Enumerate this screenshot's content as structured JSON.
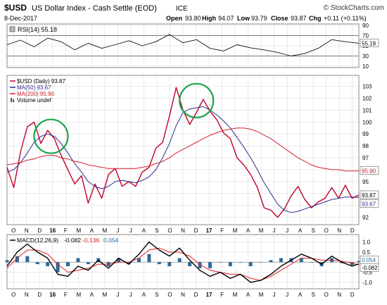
{
  "header": {
    "symbol": "$USD",
    "description": "US Dollar Index - Cash Settle (EOD)",
    "exchange": "ICE",
    "credit": "© StockCharts.com",
    "date": "8-Dec-2017",
    "ohlc": {
      "open_label": "Open",
      "open": "93.80",
      "high_label": "High",
      "high": "94.07",
      "low_label": "Low",
      "low": "93.79",
      "close_label": "Close",
      "close": "93.87",
      "chg_label": "Chg",
      "chg": "+0.11 (+0.11%)"
    }
  },
  "colors": {
    "price": "#c0002a",
    "ma50": "#2e2e8c",
    "ma200": "#d6202f",
    "rsi": "#111111",
    "macd": "#000000",
    "signal": "#e02020",
    "histogram": "#2c6a9c",
    "grid": "#d4d4d4",
    "highlight_circle": "#1aa34a"
  },
  "chart_data": [
    {
      "type": "line",
      "panel": "rsi",
      "legend": "RSI(14) 55.18",
      "ylim": [
        10,
        90
      ],
      "ytick_labels": [
        "90",
        "70",
        "50",
        "30",
        "10"
      ],
      "yticks": [
        90,
        70,
        50,
        30,
        10
      ],
      "reference_lines": [
        70,
        30
      ],
      "last_value_badge": "55.18",
      "x": [
        0,
        4,
        8,
        12,
        16,
        20,
        24,
        28,
        32,
        36,
        40,
        44,
        48,
        52,
        56,
        60,
        64,
        68,
        72,
        76,
        80,
        84,
        88,
        92,
        96,
        100,
        104
      ],
      "values": [
        52,
        61,
        48,
        65,
        58,
        42,
        55,
        45,
        52,
        60,
        50,
        58,
        72,
        56,
        62,
        45,
        40,
        52,
        46,
        42,
        37,
        30,
        35,
        45,
        62,
        58,
        55
      ]
    },
    {
      "type": "line",
      "panel": "price",
      "legend": [
        "$USD (Daily) 93.87",
        "MA(50) 93.67",
        "MA(200) 95.90",
        "Volume undef"
      ],
      "ylim": [
        91.5,
        103.8
      ],
      "yticks": [
        92,
        93,
        94,
        95,
        96,
        97,
        98,
        99,
        100,
        101,
        102,
        103
      ],
      "ytick_labels": [
        "92",
        "93",
        "94",
        "95",
        "96",
        "97",
        "98",
        "99",
        "100",
        "101",
        "102",
        "103"
      ],
      "last_value_badges": [
        "93.87",
        "93.67",
        "95.90"
      ],
      "x_tick_labels": [
        "O",
        "N",
        "D",
        "16",
        "F",
        "M",
        "A",
        "M",
        "J",
        "J",
        "A",
        "S",
        "O",
        "N",
        "D",
        "17",
        "F",
        "M",
        "A",
        "M",
        "J",
        "J",
        "A",
        "S",
        "O",
        "N",
        "D"
      ],
      "x": [
        0,
        2,
        4,
        6,
        8,
        10,
        12,
        14,
        16,
        18,
        20,
        22,
        24,
        26,
        28,
        30,
        32,
        34,
        36,
        38,
        40,
        42,
        44,
        46,
        48,
        50,
        52,
        54,
        56,
        58,
        60,
        62,
        64,
        66,
        68,
        70,
        72,
        74,
        76,
        78,
        80,
        82,
        84,
        86,
        88,
        90,
        92,
        94,
        96,
        98,
        100,
        102,
        104
      ],
      "series": [
        {
          "key": "price",
          "values": [
            96.2,
            94.5,
            97.5,
            99.6,
            100.0,
            98.2,
            99.3,
            98.6,
            97.2,
            96.0,
            94.8,
            95.5,
            93.2,
            94.8,
            93.6,
            95.6,
            96.1,
            94.6,
            95.0,
            94.6,
            95.8,
            96.2,
            97.8,
            98.3,
            100.5,
            102.9,
            101.0,
            99.8,
            100.8,
            101.9,
            100.9,
            100.2,
            99.1,
            98.6,
            97.0,
            96.4,
            95.6,
            94.5,
            92.8,
            92.6,
            92.0,
            92.7,
            93.8,
            94.6,
            93.5,
            92.8,
            93.3,
            93.6,
            94.5,
            93.6,
            94.7,
            93.6,
            93.87
          ]
        },
        {
          "key": "ma50",
          "values": [
            95.8,
            96.0,
            96.6,
            97.4,
            98.3,
            98.8,
            99.0,
            98.8,
            98.2,
            97.4,
            96.5,
            95.8,
            95.0,
            94.6,
            94.4,
            94.6,
            95.0,
            95.1,
            95.0,
            94.9,
            95.1,
            95.4,
            96.0,
            97.0,
            98.2,
            99.7,
            100.8,
            101.1,
            101.2,
            101.3,
            101.0,
            100.6,
            100.1,
            99.5,
            98.7,
            97.9,
            97.0,
            96.0,
            94.9,
            94.0,
            93.1,
            92.6,
            92.4,
            92.5,
            92.7,
            92.9,
            93.1,
            93.3,
            93.5,
            93.6,
            93.7,
            93.7,
            93.67
          ]
        },
        {
          "key": "ma200",
          "values": [
            96.4,
            96.5,
            96.6,
            96.8,
            96.9,
            97.1,
            97.2,
            97.2,
            97.0,
            96.9,
            96.7,
            96.6,
            96.4,
            96.3,
            96.2,
            96.1,
            96.1,
            96.1,
            96.1,
            96.1,
            96.2,
            96.3,
            96.5,
            96.7,
            97.0,
            97.4,
            97.7,
            98.0,
            98.3,
            98.6,
            98.9,
            99.1,
            99.3,
            99.4,
            99.5,
            99.5,
            99.4,
            99.2,
            98.9,
            98.6,
            98.2,
            97.8,
            97.4,
            97.0,
            96.7,
            96.4,
            96.2,
            96.1,
            96.0,
            96.0,
            95.9,
            95.9,
            95.9
          ]
        }
      ]
    },
    {
      "type": "line",
      "panel": "macd",
      "legend": {
        "prefix": "MACD(12,26,9)",
        "macd": "-0.082",
        "signal": "-0.136",
        "histogram": "0.054"
      },
      "ylim": [
        -1.25,
        1.3
      ],
      "yticks": [
        1.0,
        0.5,
        0.0,
        -0.5,
        -1.0
      ],
      "ytick_labels": [
        "1.0",
        "0.5",
        "",
        "-0.5",
        "-1.0"
      ],
      "last_value_badges": [
        "0.054",
        "-0.082"
      ],
      "x_tick_labels": [
        "O",
        "N",
        "D",
        "16",
        "F",
        "M",
        "A",
        "M",
        "J",
        "J",
        "A",
        "S",
        "O",
        "N",
        "D",
        "17",
        "F",
        "M",
        "A",
        "M",
        "J",
        "J",
        "A",
        "S",
        "O",
        "N",
        "D"
      ],
      "x": [
        0,
        3,
        6,
        9,
        12,
        15,
        18,
        21,
        24,
        27,
        30,
        33,
        36,
        39,
        42,
        45,
        48,
        51,
        54,
        57,
        60,
        63,
        66,
        69,
        72,
        75,
        78,
        81,
        84,
        87,
        90,
        93,
        96,
        99,
        102,
        104
      ],
      "series": [
        {
          "key": "macd",
          "values": [
            -0.2,
            0.5,
            0.9,
            0.5,
            0.2,
            -0.6,
            -0.7,
            -0.2,
            -0.4,
            0.1,
            -0.3,
            0.2,
            -0.1,
            0.4,
            1.0,
            0.6,
            0.3,
            0.7,
            0.1,
            -0.4,
            -0.7,
            -0.5,
            -0.8,
            -0.6,
            -1.0,
            -0.9,
            -0.6,
            -0.2,
            0.1,
            0.4,
            0.2,
            -0.1,
            0.3,
            0.0,
            -0.2,
            -0.082
          ]
        },
        {
          "key": "signal",
          "values": [
            -0.3,
            0.2,
            0.6,
            0.6,
            0.4,
            -0.1,
            -0.5,
            -0.4,
            -0.3,
            -0.1,
            -0.1,
            0.0,
            0.0,
            0.2,
            0.6,
            0.7,
            0.5,
            0.5,
            0.3,
            -0.1,
            -0.4,
            -0.5,
            -0.6,
            -0.6,
            -0.8,
            -0.9,
            -0.7,
            -0.4,
            -0.1,
            0.2,
            0.2,
            0.1,
            0.1,
            0.05,
            -0.05,
            -0.136
          ]
        },
        {
          "key": "histogram",
          "values": [
            0.1,
            0.3,
            0.3,
            -0.1,
            -0.2,
            -0.5,
            -0.2,
            0.2,
            -0.1,
            0.2,
            -0.2,
            0.2,
            -0.1,
            0.2,
            0.4,
            -0.1,
            -0.2,
            0.2,
            -0.2,
            -0.3,
            -0.3,
            0.0,
            -0.2,
            0.0,
            -0.2,
            0.0,
            0.1,
            0.2,
            0.2,
            0.2,
            0.0,
            -0.2,
            0.2,
            -0.05,
            -0.15,
            0.054
          ]
        }
      ]
    }
  ],
  "annotations": [
    {
      "type": "circle",
      "panel": "price",
      "x": 13,
      "y": 98.8,
      "note": "highlight"
    },
    {
      "type": "circle",
      "panel": "price",
      "x": 56,
      "y": 101.8,
      "note": "highlight"
    }
  ]
}
